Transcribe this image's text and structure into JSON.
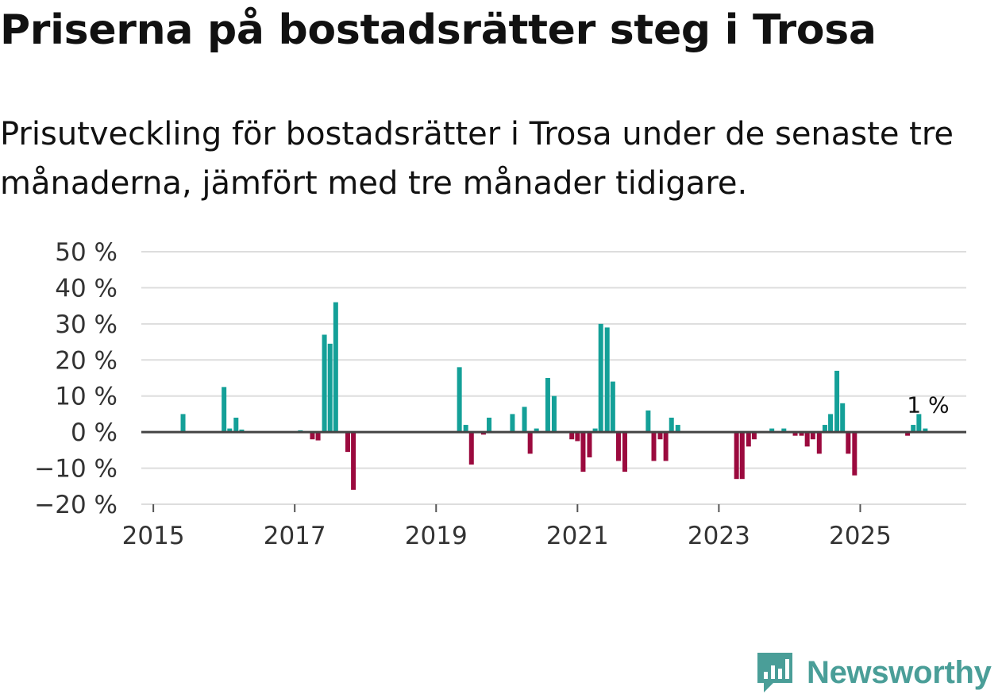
{
  "title": "Priserna på bostadsrätter steg i Trosa",
  "subtitle": "Prisutveckling för bostadsrätter i Trosa under de senaste tre månaderna, jämfört med tre månader tidigare.",
  "brand": {
    "name": "Newsworthy",
    "icon": "newsworthy-logo-icon",
    "color": "#4a9e98"
  },
  "colors": {
    "positive": "#14a098",
    "negative": "#9b0a3e",
    "grid": "#dddddd",
    "zero_line": "#444444"
  },
  "chart_data": {
    "type": "bar",
    "title": "Priserna på bostadsrätter steg i Trosa",
    "xlabel": "",
    "ylabel": "",
    "ylim": [
      -20,
      50
    ],
    "y_ticks": [
      50,
      40,
      30,
      20,
      10,
      0,
      -10,
      -20
    ],
    "y_tick_labels": [
      "50 %",
      "40 %",
      "30 %",
      "20 %",
      "10 %",
      "0 %",
      "−10 %",
      "−20 %"
    ],
    "x_ticks": [
      2015,
      2017,
      2019,
      2021,
      2023,
      2025
    ],
    "x_tick_labels": [
      "2015",
      "2017",
      "2019",
      "2021",
      "2023",
      "2025"
    ],
    "xlim": [
      2014.83,
      2026.5
    ],
    "grid": true,
    "annotation": {
      "label": "1 %",
      "x": 2025.96,
      "value": 1
    },
    "bars": [
      {
        "x": 2015.42,
        "value": 5
      },
      {
        "x": 2016.0,
        "value": 12.5
      },
      {
        "x": 2016.08,
        "value": 1
      },
      {
        "x": 2016.17,
        "value": 4
      },
      {
        "x": 2016.25,
        "value": 0.7
      },
      {
        "x": 2017.08,
        "value": 0.5
      },
      {
        "x": 2017.25,
        "value": -2
      },
      {
        "x": 2017.33,
        "value": -2.3
      },
      {
        "x": 2017.42,
        "value": 27
      },
      {
        "x": 2017.5,
        "value": 24.5
      },
      {
        "x": 2017.58,
        "value": 36
      },
      {
        "x": 2017.75,
        "value": -5.5
      },
      {
        "x": 2017.83,
        "value": -16
      },
      {
        "x": 2019.33,
        "value": 18
      },
      {
        "x": 2019.42,
        "value": 2
      },
      {
        "x": 2019.5,
        "value": -9
      },
      {
        "x": 2019.67,
        "value": -0.7
      },
      {
        "x": 2019.75,
        "value": 4
      },
      {
        "x": 2020.08,
        "value": 5
      },
      {
        "x": 2020.25,
        "value": 7
      },
      {
        "x": 2020.33,
        "value": -6
      },
      {
        "x": 2020.42,
        "value": 1
      },
      {
        "x": 2020.58,
        "value": 15
      },
      {
        "x": 2020.67,
        "value": 10
      },
      {
        "x": 2020.92,
        "value": -2
      },
      {
        "x": 2021.0,
        "value": -2.5
      },
      {
        "x": 2021.08,
        "value": -11
      },
      {
        "x": 2021.17,
        "value": -7
      },
      {
        "x": 2021.25,
        "value": 1
      },
      {
        "x": 2021.33,
        "value": 30
      },
      {
        "x": 2021.42,
        "value": 29
      },
      {
        "x": 2021.5,
        "value": 14
      },
      {
        "x": 2021.58,
        "value": -8
      },
      {
        "x": 2021.67,
        "value": -11
      },
      {
        "x": 2022.0,
        "value": 6
      },
      {
        "x": 2022.08,
        "value": -8
      },
      {
        "x": 2022.17,
        "value": -2
      },
      {
        "x": 2022.25,
        "value": -8
      },
      {
        "x": 2022.33,
        "value": 4
      },
      {
        "x": 2022.42,
        "value": 2
      },
      {
        "x": 2023.25,
        "value": -13
      },
      {
        "x": 2023.33,
        "value": -13
      },
      {
        "x": 2023.42,
        "value": -4
      },
      {
        "x": 2023.5,
        "value": -2
      },
      {
        "x": 2023.75,
        "value": 1
      },
      {
        "x": 2023.92,
        "value": 1
      },
      {
        "x": 2024.08,
        "value": -1
      },
      {
        "x": 2024.17,
        "value": -1
      },
      {
        "x": 2024.25,
        "value": -4
      },
      {
        "x": 2024.33,
        "value": -2
      },
      {
        "x": 2024.42,
        "value": -6
      },
      {
        "x": 2024.5,
        "value": 2
      },
      {
        "x": 2024.58,
        "value": 5
      },
      {
        "x": 2024.67,
        "value": 17
      },
      {
        "x": 2024.75,
        "value": 8
      },
      {
        "x": 2024.83,
        "value": -6
      },
      {
        "x": 2024.92,
        "value": -12
      },
      {
        "x": 2025.67,
        "value": -1
      },
      {
        "x": 2025.75,
        "value": 2
      },
      {
        "x": 2025.83,
        "value": 5
      },
      {
        "x": 2025.92,
        "value": 1
      }
    ]
  }
}
